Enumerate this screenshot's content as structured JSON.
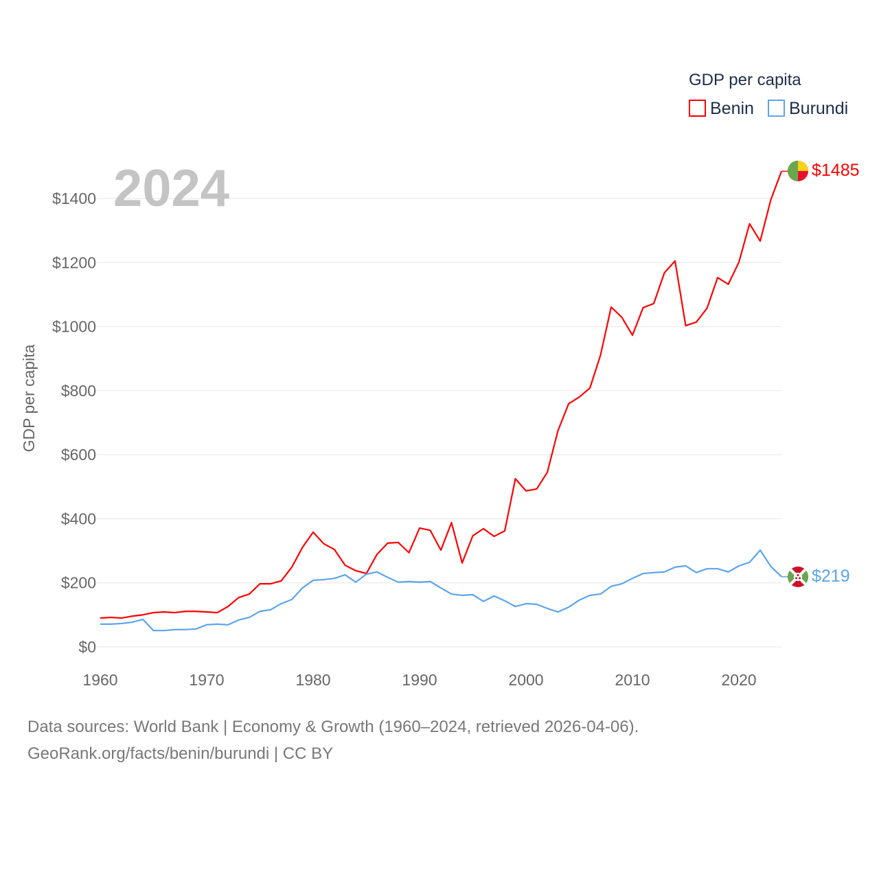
{
  "chart_data": {
    "type": "line",
    "title": "2024",
    "ylabel": "GDP per capita",
    "xlabel": "",
    "ylim": [
      0,
      1400
    ],
    "xlim": [
      1960,
      2024
    ],
    "y_ticks": [
      "$0",
      "$200",
      "$400",
      "$600",
      "$800",
      "$1000",
      "$1200",
      "$1400"
    ],
    "y_tick_values": [
      0,
      200,
      400,
      600,
      800,
      1000,
      1200,
      1400
    ],
    "x_ticks": [
      "1960",
      "1970",
      "1980",
      "1990",
      "2000",
      "2010",
      "2020"
    ],
    "x_tick_values": [
      1960,
      1970,
      1980,
      1990,
      2000,
      2010,
      2020
    ],
    "grid": true,
    "legend": {
      "title": "GDP per capita",
      "placement": "top-right"
    },
    "x": [
      1960,
      1961,
      1962,
      1963,
      1964,
      1965,
      1966,
      1967,
      1968,
      1969,
      1970,
      1971,
      1972,
      1973,
      1974,
      1975,
      1976,
      1977,
      1978,
      1979,
      1980,
      1981,
      1982,
      1983,
      1984,
      1985,
      1986,
      1987,
      1988,
      1989,
      1990,
      1991,
      1992,
      1993,
      1994,
      1995,
      1996,
      1997,
      1998,
      1999,
      2000,
      2001,
      2002,
      2003,
      2004,
      2005,
      2006,
      2007,
      2008,
      2009,
      2010,
      2011,
      2012,
      2013,
      2014,
      2015,
      2016,
      2017,
      2018,
      2019,
      2020,
      2021,
      2022,
      2023,
      2024
    ],
    "series": [
      {
        "name": "Benin",
        "color": "#ff0000",
        "end_label": "$1485",
        "values": [
          90,
          92,
          90,
          96,
          100,
          107,
          109,
          107,
          111,
          111,
          109,
          107,
          126,
          154,
          165,
          197,
          197,
          206,
          249,
          311,
          358,
          322,
          304,
          255,
          238,
          229,
          289,
          324,
          326,
          294,
          371,
          364,
          302,
          388,
          262,
          347,
          369,
          345,
          362,
          525,
          487,
          493,
          545,
          675,
          759,
          780,
          808,
          911,
          1061,
          1029,
          973,
          1059,
          1072,
          1168,
          1205,
          1003,
          1014,
          1057,
          1153,
          1132,
          1201,
          1321,
          1267,
          1396,
          1485
        ]
      },
      {
        "name": "Burundi",
        "color": "#5ba4ef",
        "end_label": "$219",
        "values": [
          71,
          71,
          73,
          77,
          86,
          51,
          51,
          54,
          54,
          56,
          69,
          71,
          69,
          84,
          92,
          111,
          116,
          135,
          148,
          184,
          208,
          210,
          214,
          225,
          202,
          227,
          234,
          217,
          202,
          204,
          202,
          204,
          184,
          165,
          161,
          163,
          142,
          159,
          144,
          126,
          135,
          133,
          120,
          109,
          124,
          146,
          161,
          165,
          189,
          197,
          214,
          229,
          232,
          234,
          249,
          253,
          232,
          244,
          244,
          234,
          253,
          264,
          302,
          251,
          219
        ]
      }
    ]
  },
  "footer": {
    "line1": "Data sources: World Bank | Economy & Growth (1960–2024, retrieved 2026-04-06).",
    "line2": "GeoRank.org/facts/benin/burundi | CC BY"
  }
}
